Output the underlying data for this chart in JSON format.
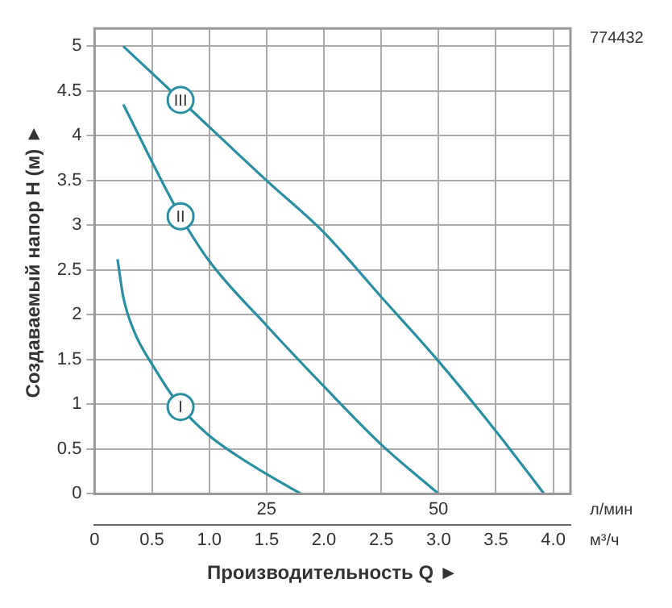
{
  "chart_data": {
    "type": "line",
    "xlabel": "Производительность Q ►",
    "ylabel": "Создаваемый напор H (м) ►",
    "annotations": [
      "774432",
      "л/мин",
      "м³/ч"
    ],
    "xlim": [
      0,
      4.15
    ],
    "xticks": [
      0,
      0.5,
      {
        "value": 1,
        "label": "1.0"
      },
      1.5,
      {
        "value": 2,
        "label": "2.0"
      },
      2.5,
      {
        "value": 3,
        "label": "3.0"
      },
      3.5,
      {
        "value": 4,
        "label": "4.0"
      }
    ],
    "x2lim": [
      0,
      69.2
    ],
    "x2ticks": [
      25,
      50
    ],
    "ylim": [
      0,
      5.2
    ],
    "yticks": [
      0,
      0.5,
      1,
      1.5,
      2,
      2.5,
      3,
      3.5,
      4,
      4.5,
      5
    ],
    "grid": true,
    "legend": false,
    "marker": "none",
    "line_style": "solid",
    "series": [
      {
        "name": "I",
        "color": "#2a8fa0",
        "x": [
          0.2,
          0.25,
          0.35,
          0.5,
          0.75,
          1.0,
          1.25,
          1.5,
          1.8
        ],
        "values": [
          2.62,
          2.2,
          1.8,
          1.45,
          0.97,
          0.65,
          0.42,
          0.22,
          0
        ]
      },
      {
        "name": "II",
        "color": "#2a8fa0",
        "x": [
          0.25,
          0.75,
          1.0,
          1.5,
          2.0,
          2.5,
          3.0
        ],
        "values": [
          4.35,
          3.1,
          2.6,
          1.88,
          1.2,
          0.55,
          0
        ]
      },
      {
        "name": "III",
        "color": "#2a8fa0",
        "x": [
          0.25,
          0.75,
          1.5,
          2.0,
          2.5,
          3.0,
          3.5,
          3.92
        ],
        "values": [
          5.0,
          4.4,
          3.5,
          2.92,
          2.2,
          1.48,
          0.7,
          0
        ]
      }
    ]
  }
}
